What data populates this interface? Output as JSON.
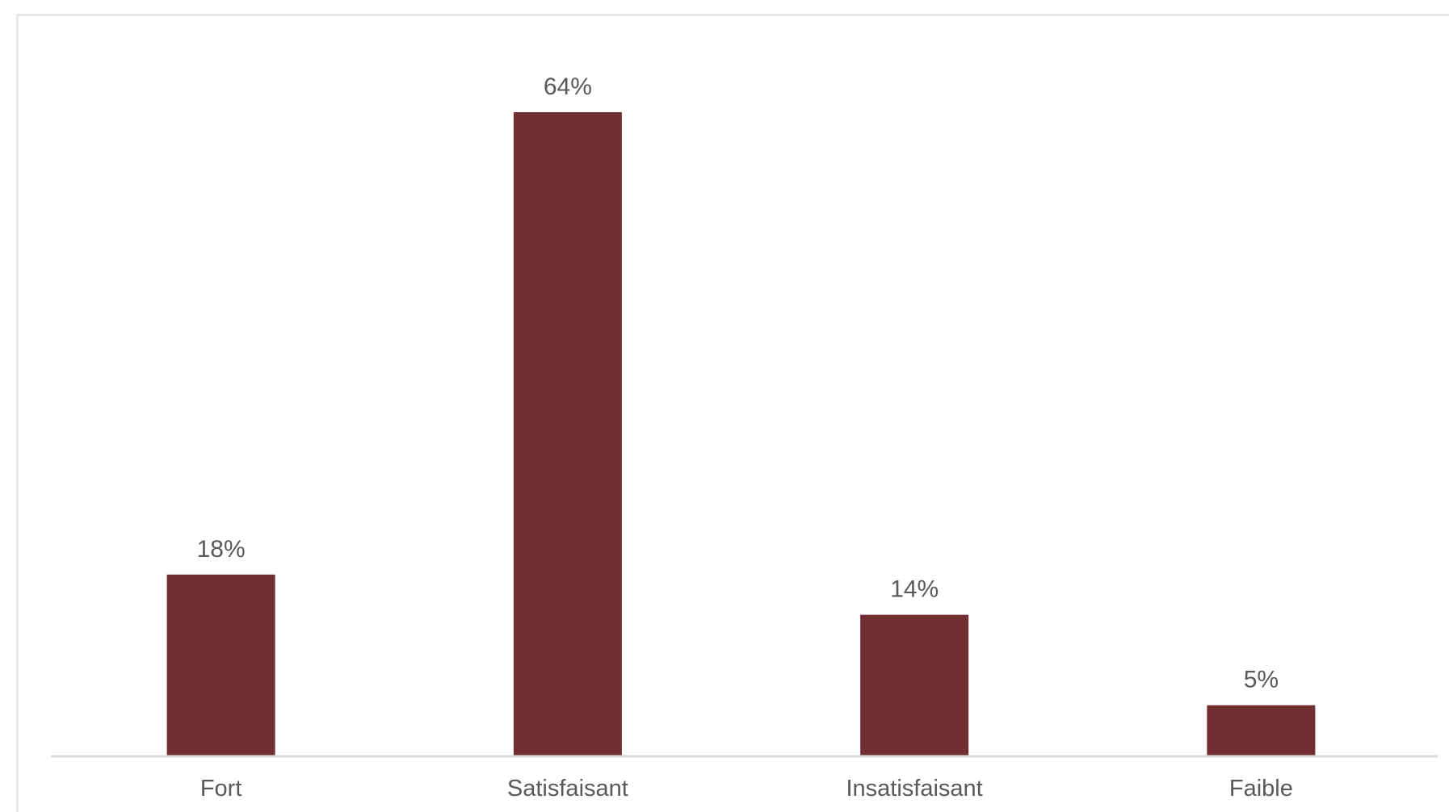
{
  "chart_data": {
    "type": "bar",
    "categories": [
      "Fort",
      "Satisfaisant",
      "Insatisfaisant",
      "Faible"
    ],
    "values": [
      18,
      64,
      14,
      5
    ],
    "value_labels": [
      "18%",
      "64%",
      "14%",
      "5%"
    ],
    "unit": "%",
    "title": "",
    "xlabel": "",
    "ylabel": "",
    "ylim": [
      0,
      64
    ],
    "grid": false,
    "legend": "none",
    "colors": {
      "bar": "#722F33",
      "axis": "#d9d9d9",
      "text": "#595959",
      "frame": "#e6e6e6"
    }
  }
}
